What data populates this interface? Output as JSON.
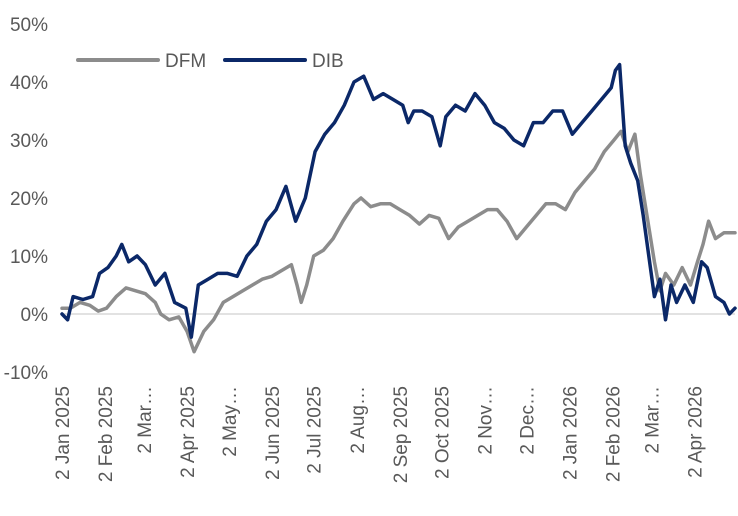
{
  "chart_data": {
    "type": "line",
    "title": "",
    "xlabel": "",
    "ylabel": "",
    "ylim": [
      -10,
      50
    ],
    "y_unit": "%",
    "y_ticks": [
      50,
      40,
      30,
      20,
      10,
      0,
      -10
    ],
    "y_tick_labels": [
      "50%",
      "40%",
      "30%",
      "20%",
      "10%",
      "0%",
      "-10%"
    ],
    "x_tick_labels": [
      "2 Jan 2025",
      "2 Feb 2025",
      "2 Mar…",
      "2 Apr 2025",
      "2 May…",
      "2 Jun 2025",
      "2 Jul 2025",
      "2 Aug…",
      "2 Sep 2025",
      "2 Oct 2025",
      "2 Nov…",
      "2 Dec…",
      "2 Jan 2026",
      "2 Feb 2026",
      "2 Mar…",
      "2 Apr 2026"
    ],
    "x_tick_dates": [
      "2025-01-02",
      "2025-02-02",
      "2025-03-02",
      "2025-04-02",
      "2025-05-02",
      "2025-06-02",
      "2025-07-02",
      "2025-08-02",
      "2025-09-02",
      "2025-10-02",
      "2025-11-02",
      "2025-12-02",
      "2026-01-02",
      "2026-02-02",
      "2026-03-02",
      "2026-04-02"
    ],
    "x_range": [
      "2025-01-02",
      "2026-05-01"
    ],
    "grid": false,
    "legend_position": "top-left",
    "series": [
      {
        "name": "DFM",
        "color": "#8c8c8c",
        "points": [
          [
            "2025-01-02",
            1
          ],
          [
            "2025-01-08",
            1
          ],
          [
            "2025-01-15",
            2
          ],
          [
            "2025-01-22",
            1.5
          ],
          [
            "2025-01-28",
            0.5
          ],
          [
            "2025-02-03",
            1
          ],
          [
            "2025-02-10",
            3
          ],
          [
            "2025-02-17",
            4.5
          ],
          [
            "2025-02-24",
            4
          ],
          [
            "2025-03-03",
            3.5
          ],
          [
            "2025-03-10",
            2
          ],
          [
            "2025-03-14",
            0
          ],
          [
            "2025-03-20",
            -1
          ],
          [
            "2025-03-27",
            -0.5
          ],
          [
            "2025-04-02",
            -3
          ],
          [
            "2025-04-07",
            -6.5
          ],
          [
            "2025-04-14",
            -3
          ],
          [
            "2025-04-21",
            -1
          ],
          [
            "2025-04-28",
            2
          ],
          [
            "2025-05-05",
            3
          ],
          [
            "2025-05-12",
            4
          ],
          [
            "2025-05-19",
            5
          ],
          [
            "2025-05-26",
            6
          ],
          [
            "2025-06-02",
            6.5
          ],
          [
            "2025-06-09",
            7.5
          ],
          [
            "2025-06-16",
            8.5
          ],
          [
            "2025-06-20",
            5
          ],
          [
            "2025-06-23",
            2
          ],
          [
            "2025-06-27",
            5
          ],
          [
            "2025-07-02",
            10
          ],
          [
            "2025-07-09",
            11
          ],
          [
            "2025-07-16",
            13
          ],
          [
            "2025-07-23",
            16
          ],
          [
            "2025-07-31",
            19
          ],
          [
            "2025-08-05",
            20
          ],
          [
            "2025-08-12",
            18.5
          ],
          [
            "2025-08-19",
            19
          ],
          [
            "2025-08-26",
            19
          ],
          [
            "2025-09-02",
            18
          ],
          [
            "2025-09-09",
            17
          ],
          [
            "2025-09-16",
            15.5
          ],
          [
            "2025-09-23",
            17
          ],
          [
            "2025-09-30",
            16.5
          ],
          [
            "2025-10-07",
            13
          ],
          [
            "2025-10-14",
            15
          ],
          [
            "2025-10-21",
            16
          ],
          [
            "2025-10-28",
            17
          ],
          [
            "2025-11-04",
            18
          ],
          [
            "2025-11-11",
            18
          ],
          [
            "2025-11-18",
            16
          ],
          [
            "2025-11-25",
            13
          ],
          [
            "2025-12-02",
            15
          ],
          [
            "2025-12-09",
            17
          ],
          [
            "2025-12-16",
            19
          ],
          [
            "2025-12-23",
            19
          ],
          [
            "2025-12-30",
            18
          ],
          [
            "2026-01-06",
            21
          ],
          [
            "2026-01-13",
            23
          ],
          [
            "2026-01-20",
            25
          ],
          [
            "2026-01-27",
            28
          ],
          [
            "2026-02-03",
            30
          ],
          [
            "2026-02-08",
            31.5
          ],
          [
            "2026-02-13",
            28
          ],
          [
            "2026-02-18",
            31
          ],
          [
            "2026-02-22",
            24
          ],
          [
            "2026-02-28",
            15
          ],
          [
            "2026-03-04",
            9
          ],
          [
            "2026-03-08",
            4
          ],
          [
            "2026-03-12",
            7
          ],
          [
            "2026-03-18",
            5
          ],
          [
            "2026-03-24",
            8
          ],
          [
            "2026-03-30",
            5
          ],
          [
            "2026-04-04",
            9
          ],
          [
            "2026-04-08",
            12
          ],
          [
            "2026-04-12",
            16
          ],
          [
            "2026-04-17",
            13
          ],
          [
            "2026-04-23",
            14
          ],
          [
            "2026-05-01",
            14
          ]
        ]
      },
      {
        "name": "DIB",
        "color": "#0b2868",
        "points": [
          [
            "2025-01-02",
            0
          ],
          [
            "2025-01-06",
            -1
          ],
          [
            "2025-01-10",
            3
          ],
          [
            "2025-01-17",
            2.5
          ],
          [
            "2025-01-24",
            3
          ],
          [
            "2025-01-29",
            7
          ],
          [
            "2025-02-04",
            8
          ],
          [
            "2025-02-10",
            10
          ],
          [
            "2025-02-14",
            12
          ],
          [
            "2025-02-19",
            9
          ],
          [
            "2025-02-25",
            10
          ],
          [
            "2025-03-03",
            8.5
          ],
          [
            "2025-03-10",
            5
          ],
          [
            "2025-03-17",
            7
          ],
          [
            "2025-03-24",
            2
          ],
          [
            "2025-04-01",
            1
          ],
          [
            "2025-04-05",
            -4
          ],
          [
            "2025-04-10",
            5
          ],
          [
            "2025-04-17",
            6
          ],
          [
            "2025-04-24",
            7
          ],
          [
            "2025-05-01",
            7
          ],
          [
            "2025-05-08",
            6.5
          ],
          [
            "2025-05-15",
            10
          ],
          [
            "2025-05-22",
            12
          ],
          [
            "2025-05-29",
            16
          ],
          [
            "2025-06-05",
            18
          ],
          [
            "2025-06-12",
            22
          ],
          [
            "2025-06-19",
            16
          ],
          [
            "2025-06-26",
            20
          ],
          [
            "2025-07-03",
            28
          ],
          [
            "2025-07-10",
            31
          ],
          [
            "2025-07-17",
            33
          ],
          [
            "2025-07-24",
            36
          ],
          [
            "2025-07-31",
            40
          ],
          [
            "2025-08-07",
            41
          ],
          [
            "2025-08-14",
            37
          ],
          [
            "2025-08-21",
            38
          ],
          [
            "2025-08-28",
            37
          ],
          [
            "2025-09-04",
            36
          ],
          [
            "2025-09-08",
            33
          ],
          [
            "2025-09-12",
            35
          ],
          [
            "2025-09-18",
            35
          ],
          [
            "2025-09-25",
            34
          ],
          [
            "2025-10-01",
            29
          ],
          [
            "2025-10-05",
            34
          ],
          [
            "2025-10-12",
            36
          ],
          [
            "2025-10-19",
            35
          ],
          [
            "2025-10-26",
            38
          ],
          [
            "2025-11-02",
            36
          ],
          [
            "2025-11-09",
            33
          ],
          [
            "2025-11-16",
            32
          ],
          [
            "2025-11-23",
            30
          ],
          [
            "2025-11-30",
            29
          ],
          [
            "2025-12-07",
            33
          ],
          [
            "2025-12-14",
            33
          ],
          [
            "2025-12-21",
            35
          ],
          [
            "2025-12-28",
            35
          ],
          [
            "2026-01-04",
            31
          ],
          [
            "2026-01-11",
            33
          ],
          [
            "2026-01-18",
            35
          ],
          [
            "2026-01-25",
            37
          ],
          [
            "2026-02-01",
            39
          ],
          [
            "2026-02-04",
            42
          ],
          [
            "2026-02-07",
            43
          ],
          [
            "2026-02-11",
            29
          ],
          [
            "2026-02-15",
            26
          ],
          [
            "2026-02-20",
            23
          ],
          [
            "2026-02-24",
            17
          ],
          [
            "2026-02-28",
            10
          ],
          [
            "2026-03-04",
            3
          ],
          [
            "2026-03-08",
            6
          ],
          [
            "2026-03-12",
            -1
          ],
          [
            "2026-03-16",
            5
          ],
          [
            "2026-03-20",
            2
          ],
          [
            "2026-03-26",
            5
          ],
          [
            "2026-04-01",
            2
          ],
          [
            "2026-04-07",
            9
          ],
          [
            "2026-04-11",
            8
          ],
          [
            "2026-04-17",
            3
          ],
          [
            "2026-04-23",
            2
          ],
          [
            "2026-04-27",
            0
          ],
          [
            "2026-05-01",
            1
          ]
        ]
      }
    ]
  }
}
